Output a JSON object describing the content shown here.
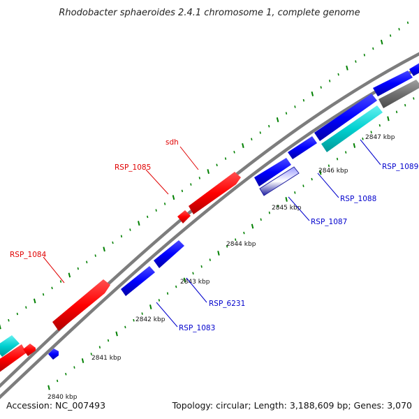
{
  "title": "Rhodobacter sphaeroides 2.4.1 chromosome 1, complete genome",
  "footer": {
    "accession": "Accession: NC_007493",
    "summary": "Topology: circular; Length: 3,188,609 bp; Genes: 3,070"
  },
  "colors": {
    "backbone": "#808080",
    "forward_gene": "#ff0000",
    "reverse_gene": "#0000ff",
    "rna_gene": "#00cccc",
    "other_gene": "#707070",
    "tick": "#008000",
    "label_red": "#e00000",
    "label_blue": "#0000cc"
  },
  "kbp_ticks": [
    "2840 kbp",
    "2841 kbp",
    "2842 kbp",
    "2843 kbp",
    "2844 kbp",
    "2845 kbp",
    "2846 kbp",
    "2847 kbp"
  ],
  "gene_labels_forward": [
    "RSP_1084",
    "RSP_1085",
    "sdh"
  ],
  "gene_labels_reverse": [
    "RSP_1083",
    "RSP_6231",
    "RSP_1087",
    "RSP_1088",
    "RSP_1089"
  ]
}
